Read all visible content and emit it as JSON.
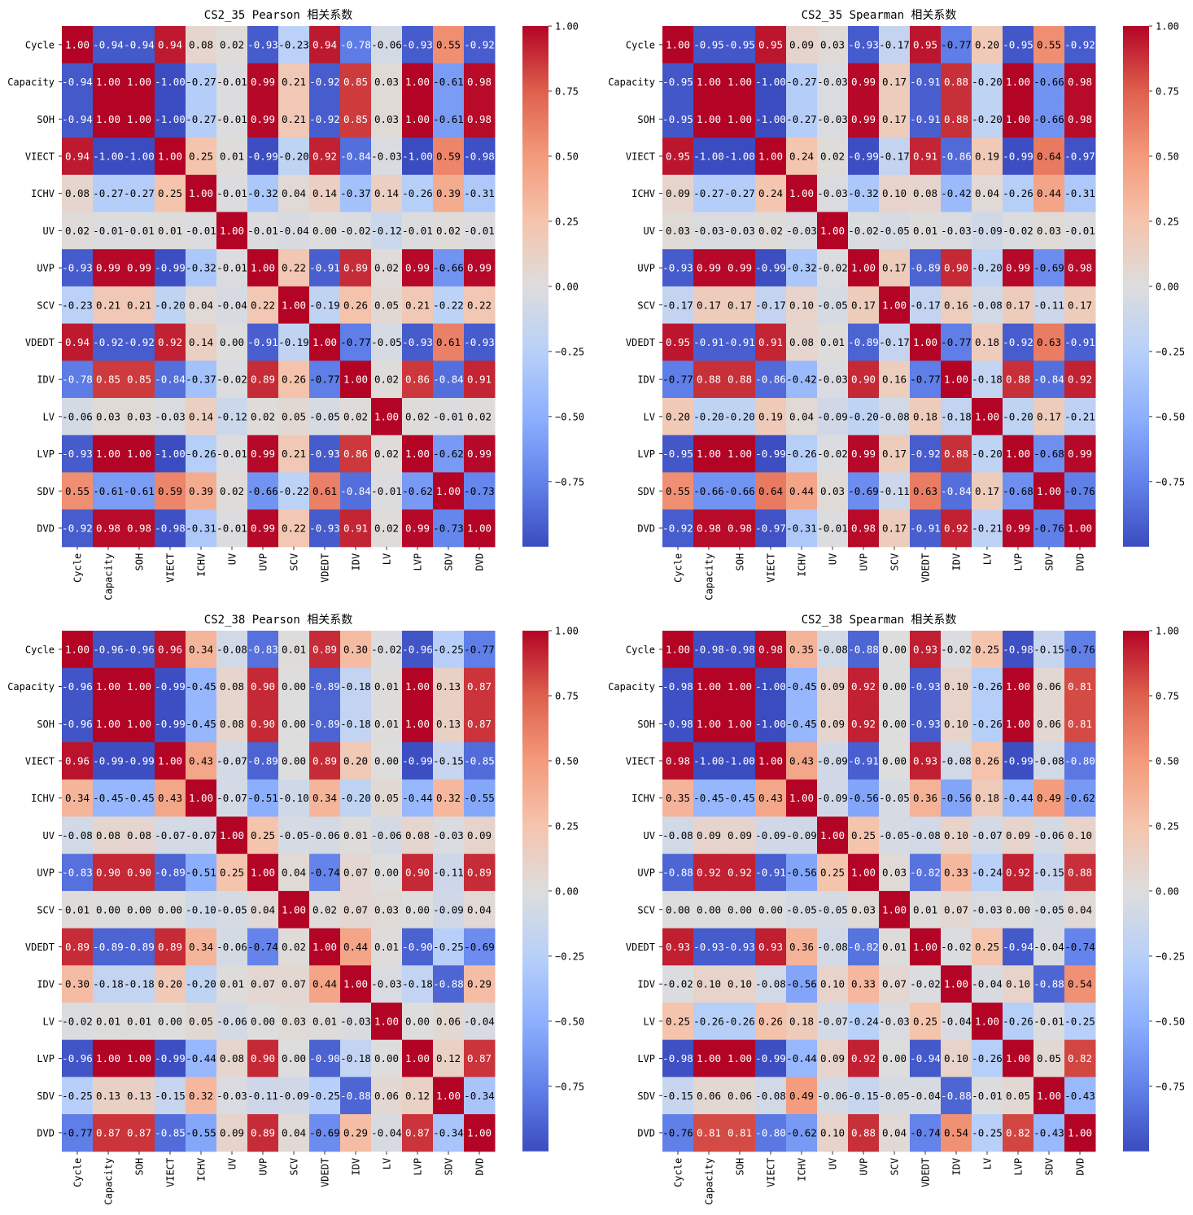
{
  "chart_data": [
    {
      "type": "heatmap",
      "title": "CS2_35 Pearson 相关系数",
      "labels": [
        "Cycle",
        "Capacity",
        "SOH",
        "VIECT",
        "ICHV",
        "UV",
        "UVP",
        "SCV",
        "VDEDT",
        "IDV",
        "LV",
        "LVP",
        "SDV",
        "DVD"
      ],
      "colorbar": {
        "min": -1.0,
        "max": 1.0,
        "ticks": [
          1.0,
          0.75,
          0.5,
          0.25,
          0.0,
          -0.25,
          -0.5,
          -0.75
        ],
        "tick_labels": [
          "1.00",
          "0.75",
          "0.50",
          "0.25",
          "0.00",
          "−0.25",
          "−0.50",
          "−0.75"
        ],
        "colormap": "coolwarm"
      },
      "values": [
        [
          1.0,
          -0.94,
          -0.94,
          0.94,
          0.08,
          0.02,
          -0.93,
          -0.23,
          0.94,
          -0.78,
          -0.06,
          -0.93,
          0.55,
          -0.92
        ],
        [
          -0.94,
          1.0,
          1.0,
          -1.0,
          -0.27,
          -0.01,
          0.99,
          0.21,
          -0.92,
          0.85,
          0.03,
          1.0,
          -0.61,
          0.98
        ],
        [
          -0.94,
          1.0,
          1.0,
          -1.0,
          -0.27,
          -0.01,
          0.99,
          0.21,
          -0.92,
          0.85,
          0.03,
          1.0,
          -0.61,
          0.98
        ],
        [
          0.94,
          -1.0,
          -1.0,
          1.0,
          0.25,
          0.01,
          -0.99,
          -0.2,
          0.92,
          -0.84,
          -0.03,
          -1.0,
          0.59,
          -0.98
        ],
        [
          0.08,
          -0.27,
          -0.27,
          0.25,
          1.0,
          -0.01,
          -0.32,
          0.04,
          0.14,
          -0.37,
          0.14,
          -0.26,
          0.39,
          -0.31
        ],
        [
          0.02,
          -0.01,
          -0.01,
          0.01,
          -0.01,
          1.0,
          -0.01,
          -0.04,
          -0.0,
          -0.02,
          -0.12,
          -0.01,
          0.02,
          -0.01
        ],
        [
          -0.93,
          0.99,
          0.99,
          -0.99,
          -0.32,
          -0.01,
          1.0,
          0.22,
          -0.91,
          0.89,
          0.02,
          0.99,
          -0.66,
          0.99
        ],
        [
          -0.23,
          0.21,
          0.21,
          -0.2,
          0.04,
          -0.04,
          0.22,
          1.0,
          -0.19,
          0.26,
          0.05,
          0.21,
          -0.22,
          0.22
        ],
        [
          0.94,
          -0.92,
          -0.92,
          0.92,
          0.14,
          -0.0,
          -0.91,
          -0.19,
          1.0,
          -0.77,
          -0.05,
          -0.93,
          0.61,
          -0.93
        ],
        [
          -0.78,
          0.85,
          0.85,
          -0.84,
          -0.37,
          -0.02,
          0.89,
          0.26,
          -0.77,
          1.0,
          0.02,
          0.86,
          -0.84,
          0.91
        ],
        [
          -0.06,
          0.03,
          0.03,
          -0.03,
          0.14,
          -0.12,
          0.02,
          0.05,
          -0.05,
          0.02,
          1.0,
          0.02,
          -0.01,
          0.02
        ],
        [
          -0.93,
          1.0,
          1.0,
          -1.0,
          -0.26,
          -0.01,
          0.99,
          0.21,
          -0.93,
          0.86,
          0.02,
          1.0,
          -0.62,
          0.99
        ],
        [
          0.55,
          -0.61,
          -0.61,
          0.59,
          0.39,
          0.02,
          -0.66,
          -0.22,
          0.61,
          -0.84,
          -0.01,
          -0.62,
          1.0,
          -0.73
        ],
        [
          -0.92,
          0.98,
          0.98,
          -0.98,
          -0.31,
          -0.01,
          0.99,
          0.22,
          -0.93,
          0.91,
          0.02,
          0.99,
          -0.73,
          1.0
        ]
      ]
    },
    {
      "type": "heatmap",
      "title": "CS2_35 Spearman 相关系数",
      "labels": [
        "Cycle",
        "Capacity",
        "SOH",
        "VIECT",
        "ICHV",
        "UV",
        "UVP",
        "SCV",
        "VDEDT",
        "IDV",
        "LV",
        "LVP",
        "SDV",
        "DVD"
      ],
      "colorbar": {
        "min": -1.0,
        "max": 1.0,
        "ticks": [
          1.0,
          0.75,
          0.5,
          0.25,
          0.0,
          -0.25,
          -0.5,
          -0.75
        ],
        "tick_labels": [
          "1.00",
          "0.75",
          "0.50",
          "0.25",
          "0.00",
          "−0.25",
          "−0.50",
          "−0.75"
        ],
        "colormap": "coolwarm"
      },
      "values": [
        [
          1.0,
          -0.95,
          -0.95,
          0.95,
          0.09,
          0.03,
          -0.93,
          -0.17,
          0.95,
          -0.77,
          0.2,
          -0.95,
          0.55,
          -0.92
        ],
        [
          -0.95,
          1.0,
          1.0,
          -1.0,
          -0.27,
          -0.03,
          0.99,
          0.17,
          -0.91,
          0.88,
          -0.2,
          1.0,
          -0.66,
          0.98
        ],
        [
          -0.95,
          1.0,
          1.0,
          -1.0,
          -0.27,
          -0.03,
          0.99,
          0.17,
          -0.91,
          0.88,
          -0.2,
          1.0,
          -0.66,
          0.98
        ],
        [
          0.95,
          -1.0,
          -1.0,
          1.0,
          0.24,
          0.02,
          -0.99,
          -0.17,
          0.91,
          -0.86,
          0.19,
          -0.99,
          0.64,
          -0.97
        ],
        [
          0.09,
          -0.27,
          -0.27,
          0.24,
          1.0,
          -0.03,
          -0.32,
          0.1,
          0.08,
          -0.42,
          0.04,
          -0.26,
          0.44,
          -0.31
        ],
        [
          0.03,
          -0.03,
          -0.03,
          0.02,
          -0.03,
          1.0,
          -0.02,
          -0.05,
          0.01,
          -0.03,
          -0.09,
          -0.02,
          0.03,
          -0.01
        ],
        [
          -0.93,
          0.99,
          0.99,
          -0.99,
          -0.32,
          -0.02,
          1.0,
          0.17,
          -0.89,
          0.9,
          -0.2,
          0.99,
          -0.69,
          0.98
        ],
        [
          -0.17,
          0.17,
          0.17,
          -0.17,
          0.1,
          -0.05,
          0.17,
          1.0,
          -0.17,
          0.16,
          -0.08,
          0.17,
          -0.11,
          0.17
        ],
        [
          0.95,
          -0.91,
          -0.91,
          0.91,
          0.08,
          0.01,
          -0.89,
          -0.17,
          1.0,
          -0.77,
          0.18,
          -0.92,
          0.63,
          -0.91
        ],
        [
          -0.77,
          0.88,
          0.88,
          -0.86,
          -0.42,
          -0.03,
          0.9,
          0.16,
          -0.77,
          1.0,
          -0.18,
          0.88,
          -0.84,
          0.92
        ],
        [
          0.2,
          -0.2,
          -0.2,
          0.19,
          0.04,
          -0.09,
          -0.2,
          -0.08,
          0.18,
          -0.18,
          1.0,
          -0.2,
          0.17,
          -0.21
        ],
        [
          -0.95,
          1.0,
          1.0,
          -0.99,
          -0.26,
          -0.02,
          0.99,
          0.17,
          -0.92,
          0.88,
          -0.2,
          1.0,
          -0.68,
          0.99
        ],
        [
          0.55,
          -0.66,
          -0.66,
          0.64,
          0.44,
          0.03,
          -0.69,
          -0.11,
          0.63,
          -0.84,
          0.17,
          -0.68,
          1.0,
          -0.76
        ],
        [
          -0.92,
          0.98,
          0.98,
          -0.97,
          -0.31,
          -0.01,
          0.98,
          0.17,
          -0.91,
          0.92,
          -0.21,
          0.99,
          -0.76,
          1.0
        ]
      ]
    },
    {
      "type": "heatmap",
      "title": "CS2_38 Pearson 相关系数",
      "labels": [
        "Cycle",
        "Capacity",
        "SOH",
        "VIECT",
        "ICHV",
        "UV",
        "UVP",
        "SCV",
        "VDEDT",
        "IDV",
        "LV",
        "LVP",
        "SDV",
        "DVD"
      ],
      "colorbar": {
        "min": -1.0,
        "max": 1.0,
        "ticks": [
          1.0,
          0.75,
          0.5,
          0.25,
          0.0,
          -0.25,
          -0.5,
          -0.75
        ],
        "tick_labels": [
          "1.00",
          "0.75",
          "0.50",
          "0.25",
          "0.00",
          "−0.25",
          "−0.50",
          "−0.75"
        ],
        "colormap": "coolwarm"
      },
      "values": [
        [
          1.0,
          -0.96,
          -0.96,
          0.96,
          0.34,
          -0.08,
          -0.83,
          0.01,
          0.89,
          0.3,
          -0.02,
          -0.96,
          -0.25,
          -0.77
        ],
        [
          -0.96,
          1.0,
          1.0,
          -0.99,
          -0.45,
          0.08,
          0.9,
          0.0,
          -0.89,
          -0.18,
          0.01,
          1.0,
          0.13,
          0.87
        ],
        [
          -0.96,
          1.0,
          1.0,
          -0.99,
          -0.45,
          0.08,
          0.9,
          0.0,
          -0.89,
          -0.18,
          0.01,
          1.0,
          0.13,
          0.87
        ],
        [
          0.96,
          -0.99,
          -0.99,
          1.0,
          0.43,
          -0.07,
          -0.89,
          0.0,
          0.89,
          0.2,
          0.0,
          -0.99,
          -0.15,
          -0.85
        ],
        [
          0.34,
          -0.45,
          -0.45,
          0.43,
          1.0,
          -0.07,
          -0.51,
          -0.1,
          0.34,
          -0.2,
          0.05,
          -0.44,
          0.32,
          -0.55
        ],
        [
          -0.08,
          0.08,
          0.08,
          -0.07,
          -0.07,
          1.0,
          0.25,
          -0.05,
          -0.06,
          0.01,
          -0.06,
          0.08,
          -0.03,
          0.09
        ],
        [
          -0.83,
          0.9,
          0.9,
          -0.89,
          -0.51,
          0.25,
          1.0,
          0.04,
          -0.74,
          0.07,
          -0.0,
          0.9,
          -0.11,
          0.89
        ],
        [
          0.01,
          0.0,
          0.0,
          0.0,
          -0.1,
          -0.05,
          0.04,
          1.0,
          0.02,
          0.07,
          0.03,
          -0.0,
          -0.09,
          0.04
        ],
        [
          0.89,
          -0.89,
          -0.89,
          0.89,
          0.34,
          -0.06,
          -0.74,
          0.02,
          1.0,
          0.44,
          0.01,
          -0.9,
          -0.25,
          -0.69
        ],
        [
          0.3,
          -0.18,
          -0.18,
          0.2,
          -0.2,
          0.01,
          0.07,
          0.07,
          0.44,
          1.0,
          -0.03,
          -0.18,
          -0.88,
          0.29
        ],
        [
          -0.02,
          0.01,
          0.01,
          0.0,
          0.05,
          -0.06,
          -0.0,
          0.03,
          0.01,
          -0.03,
          1.0,
          -0.0,
          0.06,
          -0.04
        ],
        [
          -0.96,
          1.0,
          1.0,
          -0.99,
          -0.44,
          0.08,
          0.9,
          -0.0,
          -0.9,
          -0.18,
          -0.0,
          1.0,
          0.12,
          0.87
        ],
        [
          -0.25,
          0.13,
          0.13,
          -0.15,
          0.32,
          -0.03,
          -0.11,
          -0.09,
          -0.25,
          -0.88,
          0.06,
          0.12,
          1.0,
          -0.34
        ],
        [
          -0.77,
          0.87,
          0.87,
          -0.85,
          -0.55,
          0.09,
          0.89,
          0.04,
          -0.69,
          0.29,
          -0.04,
          0.87,
          -0.34,
          1.0
        ]
      ]
    },
    {
      "type": "heatmap",
      "title": "CS2_38 Spearman 相关系数",
      "labels": [
        "Cycle",
        "Capacity",
        "SOH",
        "VIECT",
        "ICHV",
        "UV",
        "UVP",
        "SCV",
        "VDEDT",
        "IDV",
        "LV",
        "LVP",
        "SDV",
        "DVD"
      ],
      "colorbar": {
        "min": -1.0,
        "max": 1.0,
        "ticks": [
          1.0,
          0.75,
          0.5,
          0.25,
          0.0,
          -0.25,
          -0.5,
          -0.75
        ],
        "tick_labels": [
          "1.00",
          "0.75",
          "0.50",
          "0.25",
          "0.00",
          "−0.25",
          "−0.50",
          "−0.75"
        ],
        "colormap": "coolwarm"
      },
      "values": [
        [
          1.0,
          -0.98,
          -0.98,
          0.98,
          0.35,
          -0.08,
          -0.88,
          -0.0,
          0.93,
          -0.02,
          0.25,
          -0.98,
          -0.15,
          -0.76
        ],
        [
          -0.98,
          1.0,
          1.0,
          -1.0,
          -0.45,
          0.09,
          0.92,
          -0.0,
          -0.93,
          0.1,
          -0.26,
          1.0,
          0.06,
          0.81
        ],
        [
          -0.98,
          1.0,
          1.0,
          -1.0,
          -0.45,
          0.09,
          0.92,
          -0.0,
          -0.93,
          0.1,
          -0.26,
          1.0,
          0.06,
          0.81
        ],
        [
          0.98,
          -1.0,
          -1.0,
          1.0,
          0.43,
          -0.09,
          -0.91,
          -0.0,
          0.93,
          -0.08,
          0.26,
          -0.99,
          -0.08,
          -0.8
        ],
        [
          0.35,
          -0.45,
          -0.45,
          0.43,
          1.0,
          -0.09,
          -0.56,
          -0.05,
          0.36,
          -0.56,
          0.18,
          -0.44,
          0.49,
          -0.62
        ],
        [
          -0.08,
          0.09,
          0.09,
          -0.09,
          -0.09,
          1.0,
          0.25,
          -0.05,
          -0.08,
          0.1,
          -0.07,
          0.09,
          -0.06,
          0.1
        ],
        [
          -0.88,
          0.92,
          0.92,
          -0.91,
          -0.56,
          0.25,
          1.0,
          0.03,
          -0.82,
          0.33,
          -0.24,
          0.92,
          -0.15,
          0.88
        ],
        [
          -0.0,
          -0.0,
          -0.0,
          -0.0,
          -0.05,
          -0.05,
          0.03,
          1.0,
          0.01,
          0.07,
          -0.03,
          0.0,
          -0.05,
          0.04
        ],
        [
          0.93,
          -0.93,
          -0.93,
          0.93,
          0.36,
          -0.08,
          -0.82,
          0.01,
          1.0,
          -0.02,
          0.25,
          -0.94,
          -0.04,
          -0.74
        ],
        [
          -0.02,
          0.1,
          0.1,
          -0.08,
          -0.56,
          0.1,
          0.33,
          0.07,
          -0.02,
          1.0,
          -0.04,
          0.1,
          -0.88,
          0.54
        ],
        [
          0.25,
          -0.26,
          -0.26,
          0.26,
          0.18,
          -0.07,
          -0.24,
          -0.03,
          0.25,
          -0.04,
          1.0,
          -0.26,
          -0.01,
          -0.25
        ],
        [
          -0.98,
          1.0,
          1.0,
          -0.99,
          -0.44,
          0.09,
          0.92,
          0.0,
          -0.94,
          0.1,
          -0.26,
          1.0,
          0.05,
          0.82
        ],
        [
          -0.15,
          0.06,
          0.06,
          -0.08,
          0.49,
          -0.06,
          -0.15,
          -0.05,
          -0.04,
          -0.88,
          -0.01,
          0.05,
          1.0,
          -0.43
        ],
        [
          -0.76,
          0.81,
          0.81,
          -0.8,
          -0.62,
          0.1,
          0.88,
          0.04,
          -0.74,
          0.54,
          -0.25,
          0.82,
          -0.43,
          1.0
        ]
      ]
    }
  ]
}
